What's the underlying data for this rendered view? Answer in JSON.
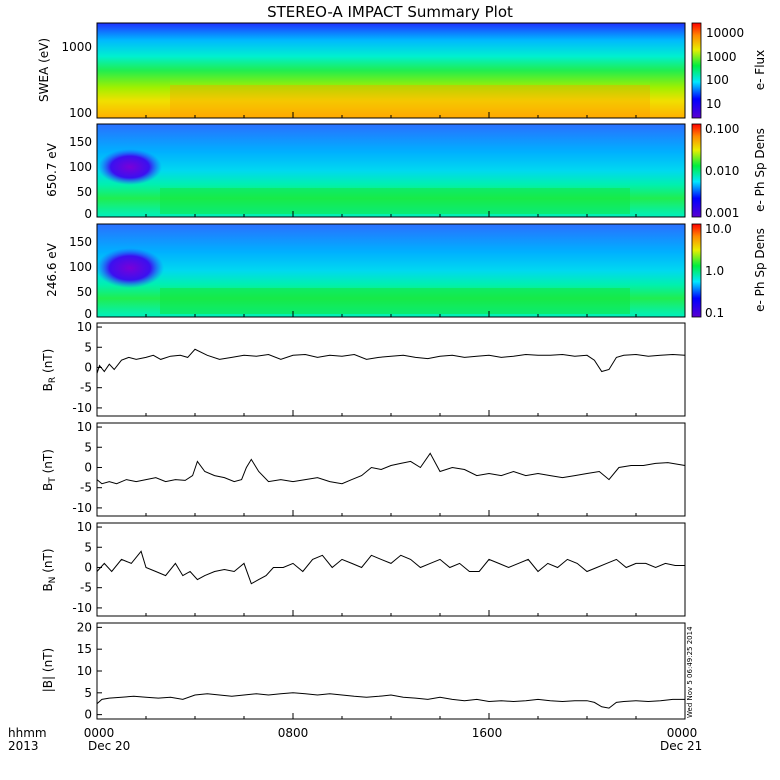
{
  "title": "STEREO-A IMPACT Summary Plot",
  "footer": {
    "row1_label": "hhmm",
    "row2_label": "2013",
    "x_ticks": [
      "0000",
      "0800",
      "1600",
      "0000"
    ],
    "date_start": "Dec 20",
    "date_end": "Dec 21"
  },
  "timestamp": "Wed Nov  5 06:49:25 2014",
  "chart_data": [
    {
      "type": "heatmap",
      "ylabel": "SWEA (eV)",
      "y_scale": "log",
      "yticks": [
        "1000",
        "100"
      ],
      "colorbar_label": "e- Flux",
      "colorbar_scale": "log",
      "colorbar_ticks": [
        "10000",
        "1000",
        "100",
        "10"
      ]
    },
    {
      "type": "heatmap",
      "ylabel": "650.7 eV",
      "yticks": [
        "150",
        "100",
        "50",
        "0"
      ],
      "colorbar_label": "e- Ph Sp Dens",
      "colorbar_scale": "log",
      "colorbar_ticks": [
        "0.100",
        "0.010",
        "0.001"
      ]
    },
    {
      "type": "heatmap",
      "ylabel": "246.6 eV",
      "yticks": [
        "150",
        "100",
        "50",
        "0"
      ],
      "colorbar_label": "e- Ph Sp Dens",
      "colorbar_scale": "log",
      "colorbar_ticks": [
        "10.0",
        "1.0",
        "0.1"
      ]
    },
    {
      "type": "line",
      "ylabel": "B",
      "ylabel_sub": "R",
      "yunit": "(nT)",
      "ylim": [
        -12,
        11
      ],
      "yticks": [
        "10",
        "5",
        "0",
        "-5",
        "-10"
      ],
      "x_hours": [
        0,
        0.1,
        0.3,
        0.5,
        0.7,
        1,
        1.3,
        1.6,
        2,
        2.3,
        2.6,
        3,
        3.4,
        3.7,
        4,
        4.5,
        5,
        5.5,
        6,
        6.5,
        7,
        7.5,
        8,
        8.5,
        9,
        9.5,
        10,
        10.5,
        11,
        11.5,
        12,
        12.5,
        13,
        13.5,
        14,
        14.5,
        15,
        15.5,
        16,
        16.5,
        17,
        17.5,
        18,
        18.5,
        19,
        19.5,
        20,
        20.3,
        20.6,
        20.9,
        21.2,
        21.5,
        22,
        22.5,
        23,
        23.5,
        24
      ],
      "values": [
        -1.5,
        0.5,
        -1,
        0.8,
        -0.5,
        1.8,
        2.5,
        2,
        2.5,
        3,
        2,
        2.8,
        3,
        2.5,
        4.5,
        3,
        2,
        2.5,
        3,
        2.8,
        3.2,
        2,
        3,
        3.2,
        2.5,
        3,
        2.8,
        3.2,
        2,
        2.5,
        2.8,
        3,
        2.5,
        2.2,
        2.8,
        3,
        2.5,
        2.8,
        3,
        2.5,
        2.8,
        3.2,
        3,
        3,
        3.2,
        2.8,
        3,
        1.8,
        -1,
        -0.5,
        2.5,
        3,
        3.2,
        2.8,
        3,
        3.2,
        3
      ]
    },
    {
      "type": "line",
      "ylabel": "B",
      "ylabel_sub": "T",
      "yunit": "(nT)",
      "ylim": [
        -12,
        11
      ],
      "yticks": [
        "10",
        "5",
        "0",
        "-5",
        "-10"
      ],
      "x_hours": [
        0,
        0.2,
        0.5,
        0.8,
        1.2,
        1.6,
        2,
        2.4,
        2.8,
        3.2,
        3.6,
        3.9,
        4.1,
        4.4,
        4.8,
        5.2,
        5.6,
        5.9,
        6.1,
        6.3,
        6.6,
        7,
        7.5,
        8,
        8.5,
        9,
        9.5,
        10,
        10.4,
        10.8,
        11.2,
        11.6,
        12,
        12.4,
        12.8,
        13.2,
        13.6,
        14,
        14.5,
        15,
        15.5,
        16,
        16.5,
        17,
        17.5,
        18,
        18.5,
        19,
        19.5,
        20,
        20.5,
        20.9,
        21.3,
        21.8,
        22.3,
        22.8,
        23.3,
        24
      ],
      "values": [
        -3,
        -4,
        -3.5,
        -4,
        -3,
        -3.5,
        -3,
        -2.5,
        -3.5,
        -3,
        -3.2,
        -2,
        1.5,
        -1,
        -2,
        -2.5,
        -3.5,
        -3,
        0,
        2,
        -1,
        -3.5,
        -3,
        -3.5,
        -3,
        -2.5,
        -3.5,
        -4,
        -3,
        -2,
        0,
        -0.5,
        0.5,
        1,
        1.5,
        0,
        3.5,
        -1,
        0,
        -0.5,
        -2,
        -1.5,
        -2,
        -1,
        -2,
        -1.5,
        -2,
        -2.5,
        -2,
        -1.5,
        -1,
        -3,
        0,
        0.5,
        0.5,
        1,
        1.2,
        0.5
      ]
    },
    {
      "type": "line",
      "ylabel": "B",
      "ylabel_sub": "N",
      "yunit": "(nT)",
      "ylim": [
        -12,
        11
      ],
      "yticks": [
        "10",
        "5",
        "0",
        "-5",
        "-10"
      ],
      "x_hours": [
        0,
        0.3,
        0.6,
        1,
        1.4,
        1.8,
        2,
        2.4,
        2.8,
        3.2,
        3.5,
        3.8,
        4.1,
        4.4,
        4.8,
        5.2,
        5.6,
        6,
        6.3,
        6.6,
        6.9,
        7.2,
        7.6,
        8,
        8.4,
        8.8,
        9.2,
        9.6,
        10,
        10.4,
        10.8,
        11.2,
        11.6,
        12,
        12.4,
        12.8,
        13.2,
        13.6,
        14,
        14.4,
        14.8,
        15.2,
        15.6,
        16,
        16.4,
        16.8,
        17.2,
        17.6,
        18,
        18.4,
        18.8,
        19.2,
        19.6,
        20,
        20.4,
        20.8,
        21.2,
        21.6,
        22,
        22.4,
        22.8,
        23.2,
        23.6,
        24
      ],
      "values": [
        -1,
        1,
        -1,
        2,
        1,
        4,
        0,
        -1,
        -2,
        1,
        -2,
        -1,
        -3,
        -2,
        -1,
        -0.5,
        -1,
        1,
        -4,
        -3,
        -2,
        0,
        0,
        1,
        -1,
        2,
        3,
        0,
        2,
        1,
        0,
        3,
        2,
        1,
        3,
        2,
        0,
        1,
        2,
        0,
        1,
        -1,
        -1,
        2,
        1,
        0,
        1,
        2,
        -1,
        1,
        0,
        2,
        1,
        -1,
        0,
        1,
        2,
        0,
        1,
        1,
        0,
        1,
        0.5,
        0.5
      ]
    },
    {
      "type": "line",
      "ylabel": "|B|",
      "yunit": "(nT)",
      "ylim": [
        -1,
        21
      ],
      "yticks": [
        "20",
        "15",
        "10",
        "5",
        "0"
      ],
      "x_hours": [
        0,
        0.2,
        0.5,
        1,
        1.5,
        2,
        2.5,
        3,
        3.5,
        4,
        4.5,
        5,
        5.5,
        6,
        6.5,
        7,
        7.5,
        8,
        8.5,
        9,
        9.5,
        10,
        10.5,
        11,
        11.5,
        12,
        12.5,
        13,
        13.5,
        14,
        14.5,
        15,
        15.5,
        16,
        16.5,
        17,
        17.5,
        18,
        18.5,
        19,
        19.5,
        20,
        20.3,
        20.6,
        20.9,
        21.2,
        21.5,
        22,
        22.5,
        23,
        23.5,
        24
      ],
      "values": [
        2.5,
        3.5,
        3.8,
        4,
        4.2,
        4,
        3.8,
        4,
        3.5,
        4.5,
        4.8,
        4.5,
        4.2,
        4.5,
        4.8,
        4.5,
        4.8,
        5,
        4.8,
        4.5,
        4.8,
        4.5,
        4.2,
        4,
        4.2,
        4.5,
        4,
        3.8,
        3.5,
        4,
        3.5,
        3.2,
        3.5,
        3,
        3.2,
        3,
        3.2,
        3.5,
        3.2,
        3,
        3.2,
        3.2,
        2.8,
        1.8,
        1.5,
        2.8,
        3,
        3.2,
        3,
        3.2,
        3.5,
        3.5
      ]
    }
  ]
}
